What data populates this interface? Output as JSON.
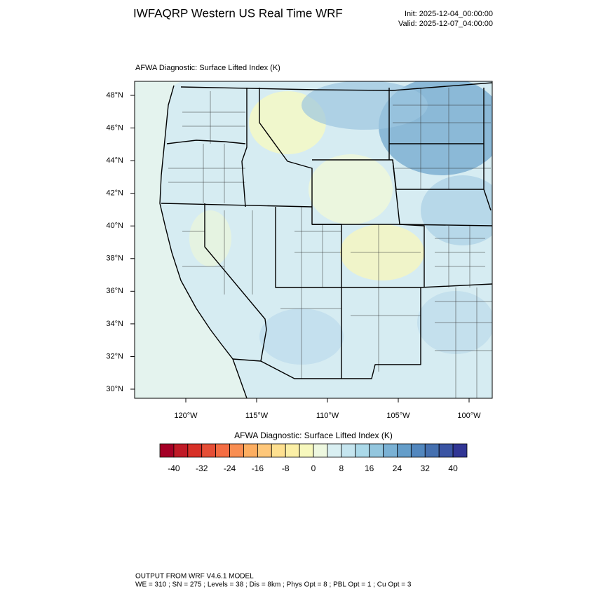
{
  "header": {
    "title": "IWFAQRP Western US Real Time WRF",
    "init": "Init: 2025-12-04_00:00:00",
    "valid": "Valid: 2025-12-07_04:00:00"
  },
  "map": {
    "subtitle": "AFWA Diagnostic: Surface Lifted Index   (K)",
    "lat_labels": [
      "48°N",
      "46°N",
      "44°N",
      "42°N",
      "40°N",
      "38°N",
      "36°N",
      "34°N",
      "32°N",
      "30°N"
    ],
    "lon_labels": [
      "120°W",
      "115°W",
      "110°W",
      "105°W",
      "100°W"
    ]
  },
  "colorbar": {
    "title": "AFWA Diagnostic: Surface Lifted Index  (K)",
    "lim": [
      -44,
      44
    ],
    "ticks": [
      -40,
      -32,
      -24,
      -16,
      -8,
      0,
      8,
      16,
      24,
      32,
      40
    ],
    "colors": [
      "#a50026",
      "#c01a27",
      "#d73027",
      "#e54e36",
      "#f46d43",
      "#f98e52",
      "#fdae61",
      "#fec77a",
      "#fee090",
      "#fbefa6",
      "#f7f8bd",
      "#eef8e0",
      "#d9eff2",
      "#c5e5ef",
      "#abd9e9",
      "#93c6de",
      "#7ab1d4",
      "#649dc9",
      "#5287be",
      "#4570b0",
      "#3a54a3",
      "#313695"
    ]
  },
  "footer": {
    "line1": "OUTPUT FROM WRF V4.6.1 MODEL",
    "line2": "WE = 310 ; SN = 275 ; Levels = 38 ; Dis = 8km ; Phys Opt = 8 ; PBL Opt = 1 ; Cu Opt = 3"
  }
}
